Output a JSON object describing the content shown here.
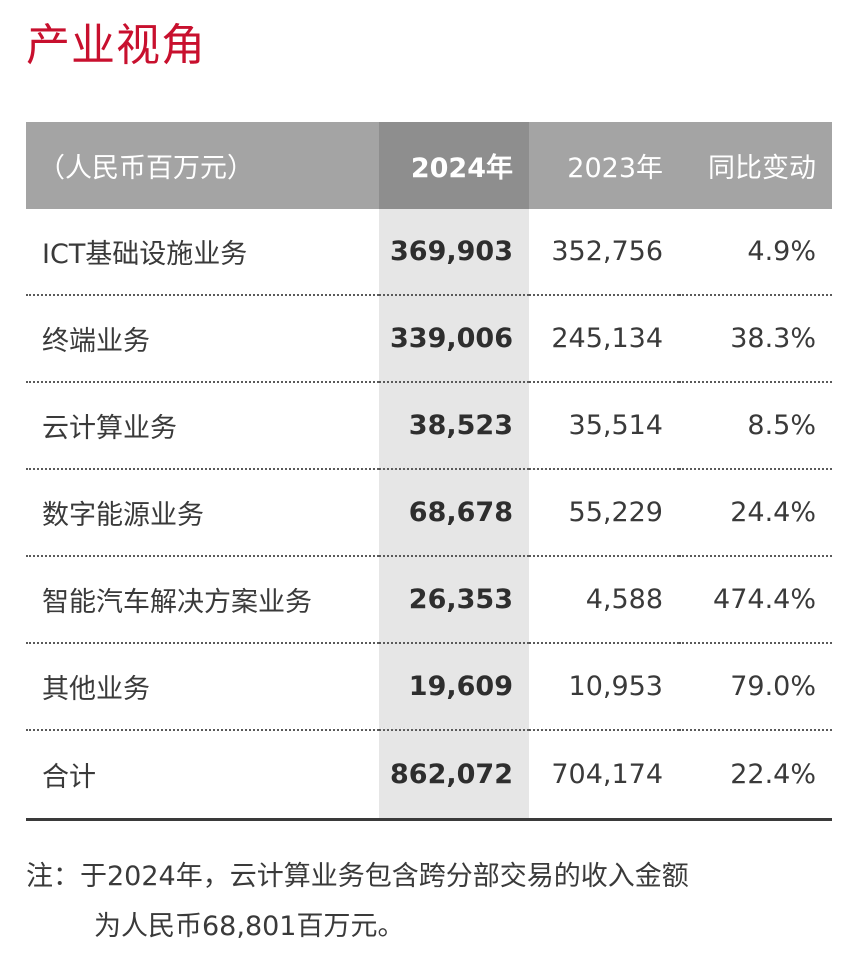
{
  "title": "产业视角",
  "table": {
    "headers": [
      "（人民币百万元）",
      "2024年",
      "2023年",
      "同比变动"
    ],
    "rows": [
      {
        "segment": "ICT基础设施业务",
        "y2024": "369,903",
        "y2023": "352,756",
        "change": "4.9%"
      },
      {
        "segment": "终端业务",
        "y2024": "339,006",
        "y2023": "245,134",
        "change": "38.3%"
      },
      {
        "segment": "云计算业务",
        "y2024": "38,523",
        "y2023": "35,514",
        "change": "8.5%"
      },
      {
        "segment": "数字能源业务",
        "y2024": "68,678",
        "y2023": "55,229",
        "change": "24.4%"
      },
      {
        "segment": "智能汽车解决方案业务",
        "y2024": "26,353",
        "y2023": "4,588",
        "change": "474.4%"
      },
      {
        "segment": "其他业务",
        "y2024": "19,609",
        "y2023": "10,953",
        "change": "79.0%"
      },
      {
        "segment": "合计",
        "y2024": "862,072",
        "y2023": "704,174",
        "change": "22.4%"
      }
    ]
  },
  "note": {
    "line1": "注：于2024年，云计算业务包含跨分部交易的收入金额",
    "line2": "为人民币68,801百万元。"
  },
  "colors": {
    "title": "#c8102e",
    "header_bg": "#a4a4a4",
    "header_highlight_bg": "#8e8e8e",
    "column_highlight_bg": "#e6e6e6"
  }
}
